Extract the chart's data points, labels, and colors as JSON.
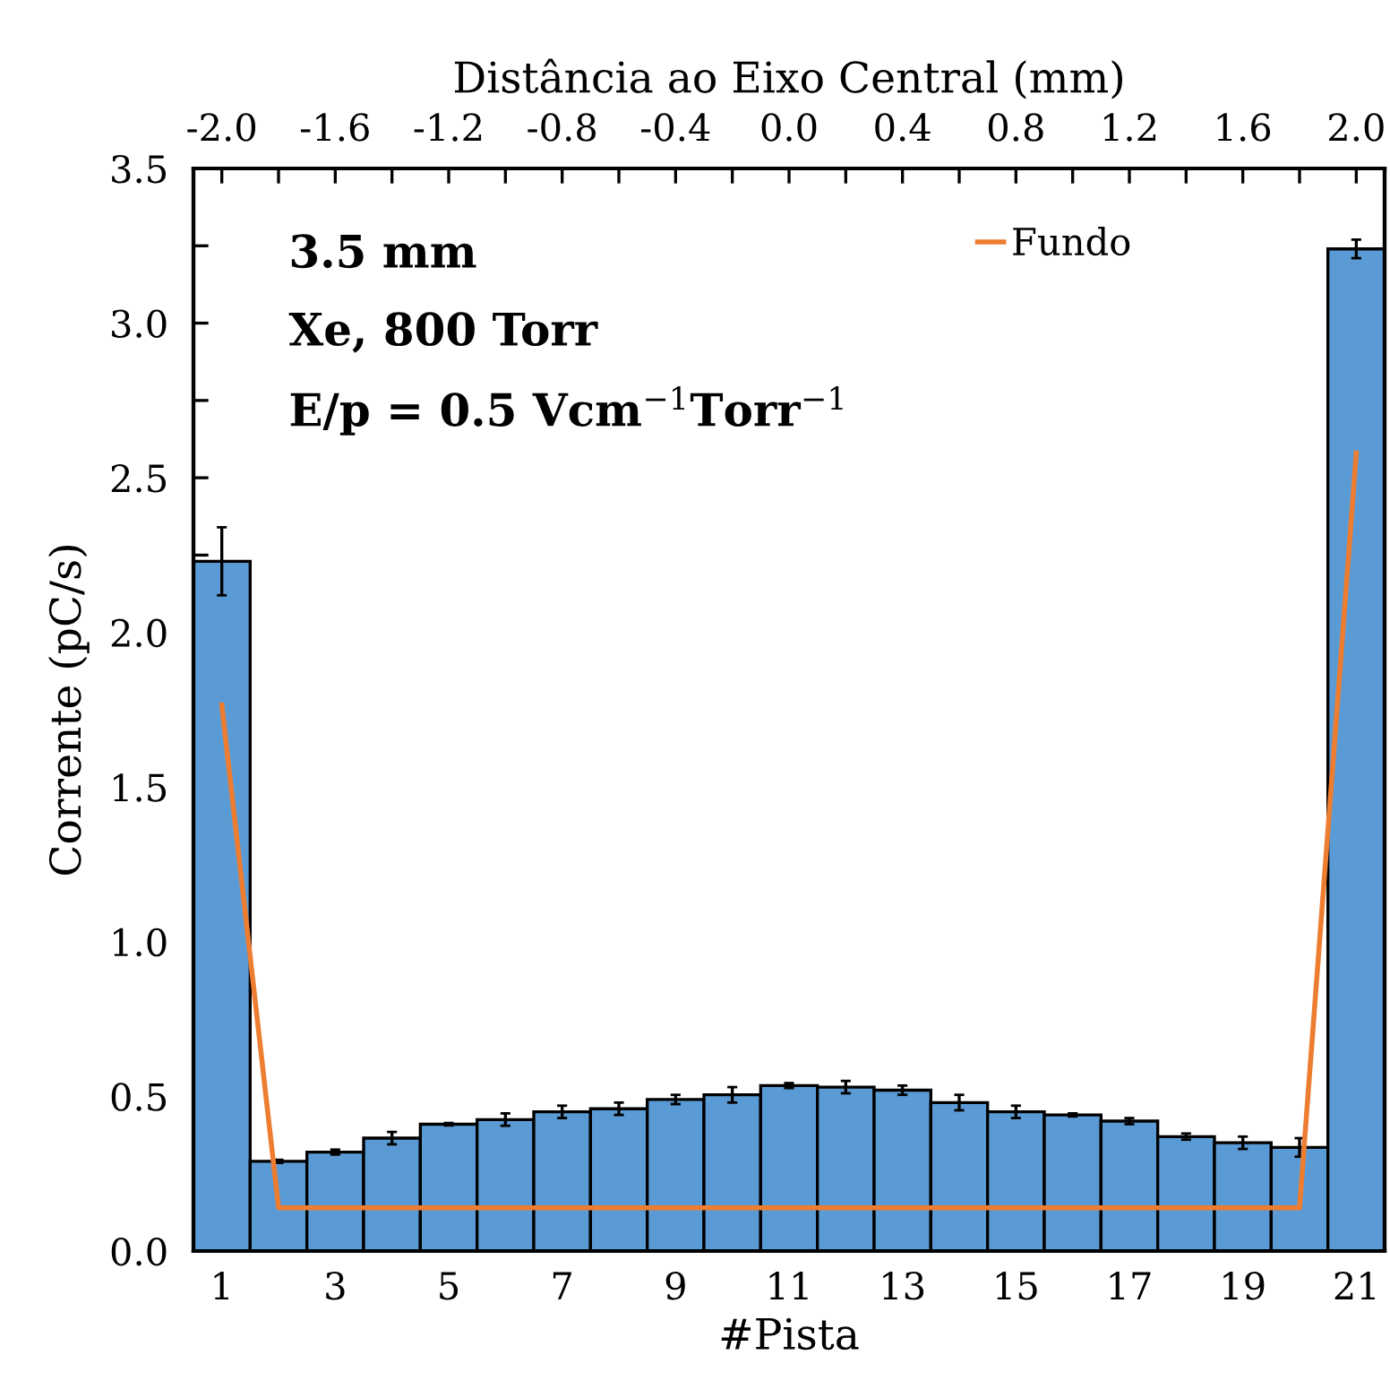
{
  "chart_data": {
    "type": "bar",
    "xlabel": "#Pista",
    "ylabel": "Corrente (pC/s)",
    "x2label": "Distância ao Eixo Central (mm)",
    "x": [
      1,
      2,
      3,
      4,
      5,
      6,
      7,
      8,
      9,
      10,
      11,
      12,
      13,
      14,
      15,
      16,
      17,
      18,
      19,
      20,
      21
    ],
    "series": [
      {
        "color": "#5b9bd5",
        "values": [
          2.23,
          0.29,
          0.32,
          0.365,
          0.41,
          0.425,
          0.45,
          0.46,
          0.49,
          0.505,
          0.535,
          0.53,
          0.52,
          0.48,
          0.45,
          0.44,
          0.42,
          0.37,
          0.35,
          0.335,
          3.24
        ],
        "errors": [
          0.11,
          0.005,
          0.008,
          0.02,
          0.004,
          0.02,
          0.02,
          0.02,
          0.015,
          0.025,
          0.008,
          0.02,
          0.015,
          0.025,
          0.02,
          0.005,
          0.01,
          0.01,
          0.02,
          0.03,
          0.03
        ]
      },
      {
        "type": "line",
        "name": "Fundo",
        "color": "#ed7d31",
        "values": [
          1.765,
          0.14,
          0.14,
          0.14,
          0.14,
          0.14,
          0.14,
          0.14,
          0.14,
          0.14,
          0.14,
          0.14,
          0.14,
          0.14,
          0.14,
          0.14,
          0.14,
          0.14,
          0.14,
          0.14,
          2.58
        ]
      }
    ],
    "xlim": [
      0.5,
      21.5
    ],
    "xticks": [
      1,
      3,
      5,
      7,
      9,
      11,
      13,
      15,
      17,
      19,
      21
    ],
    "x2lim": [
      -2.1,
      2.1
    ],
    "x2ticks": [
      {
        "value": -2.0,
        "label": "-2.0"
      },
      {
        "value": -1.8,
        "label": null
      },
      {
        "value": -1.6,
        "label": "-1.6"
      },
      {
        "value": -1.4,
        "label": null
      },
      {
        "value": -1.2,
        "label": "-1.2"
      },
      {
        "value": -1.0,
        "label": null
      },
      {
        "value": -0.8,
        "label": "-0.8"
      },
      {
        "value": -0.6,
        "label": null
      },
      {
        "value": -0.4,
        "label": "-0.4"
      },
      {
        "value": -0.2,
        "label": null
      },
      {
        "value": 0.0,
        "label": "0.0"
      },
      {
        "value": 0.2,
        "label": null
      },
      {
        "value": 0.4,
        "label": "0.4"
      },
      {
        "value": 0.6,
        "label": null
      },
      {
        "value": 0.8,
        "label": "0.8"
      },
      {
        "value": 1.0,
        "label": null
      },
      {
        "value": 1.2,
        "label": "1.2"
      },
      {
        "value": 1.4,
        "label": null
      },
      {
        "value": 1.6,
        "label": "1.6"
      },
      {
        "value": 1.8,
        "label": null
      },
      {
        "value": 2.0,
        "label": "2.0"
      }
    ],
    "ylim": [
      0,
      3.5
    ],
    "yticks": [
      {
        "value": 0,
        "label": "0.0"
      },
      {
        "value": 0.25,
        "label": null
      },
      {
        "value": 0.5,
        "label": "0.5"
      },
      {
        "value": 0.75,
        "label": null
      },
      {
        "value": 1.0,
        "label": "1.0"
      },
      {
        "value": 1.25,
        "label": null
      },
      {
        "value": 1.5,
        "label": "1.5"
      },
      {
        "value": 1.75,
        "label": null
      },
      {
        "value": 2.0,
        "label": "2.0"
      },
      {
        "value": 2.25,
        "label": null
      },
      {
        "value": 2.5,
        "label": "2.5"
      },
      {
        "value": 2.75,
        "label": null
      },
      {
        "value": 3.0,
        "label": "3.0"
      },
      {
        "value": 3.25,
        "label": null
      },
      {
        "value": 3.5,
        "label": "3.5"
      }
    ],
    "annotations": [
      "3.5 mm",
      "Xe, 800 Torr",
      "E/p = 0.5 Vcm$^{−1}$Torr$^{−1}$"
    ],
    "grid": false,
    "legend": "top right",
    "marker": "none",
    "line_style": "solid"
  }
}
